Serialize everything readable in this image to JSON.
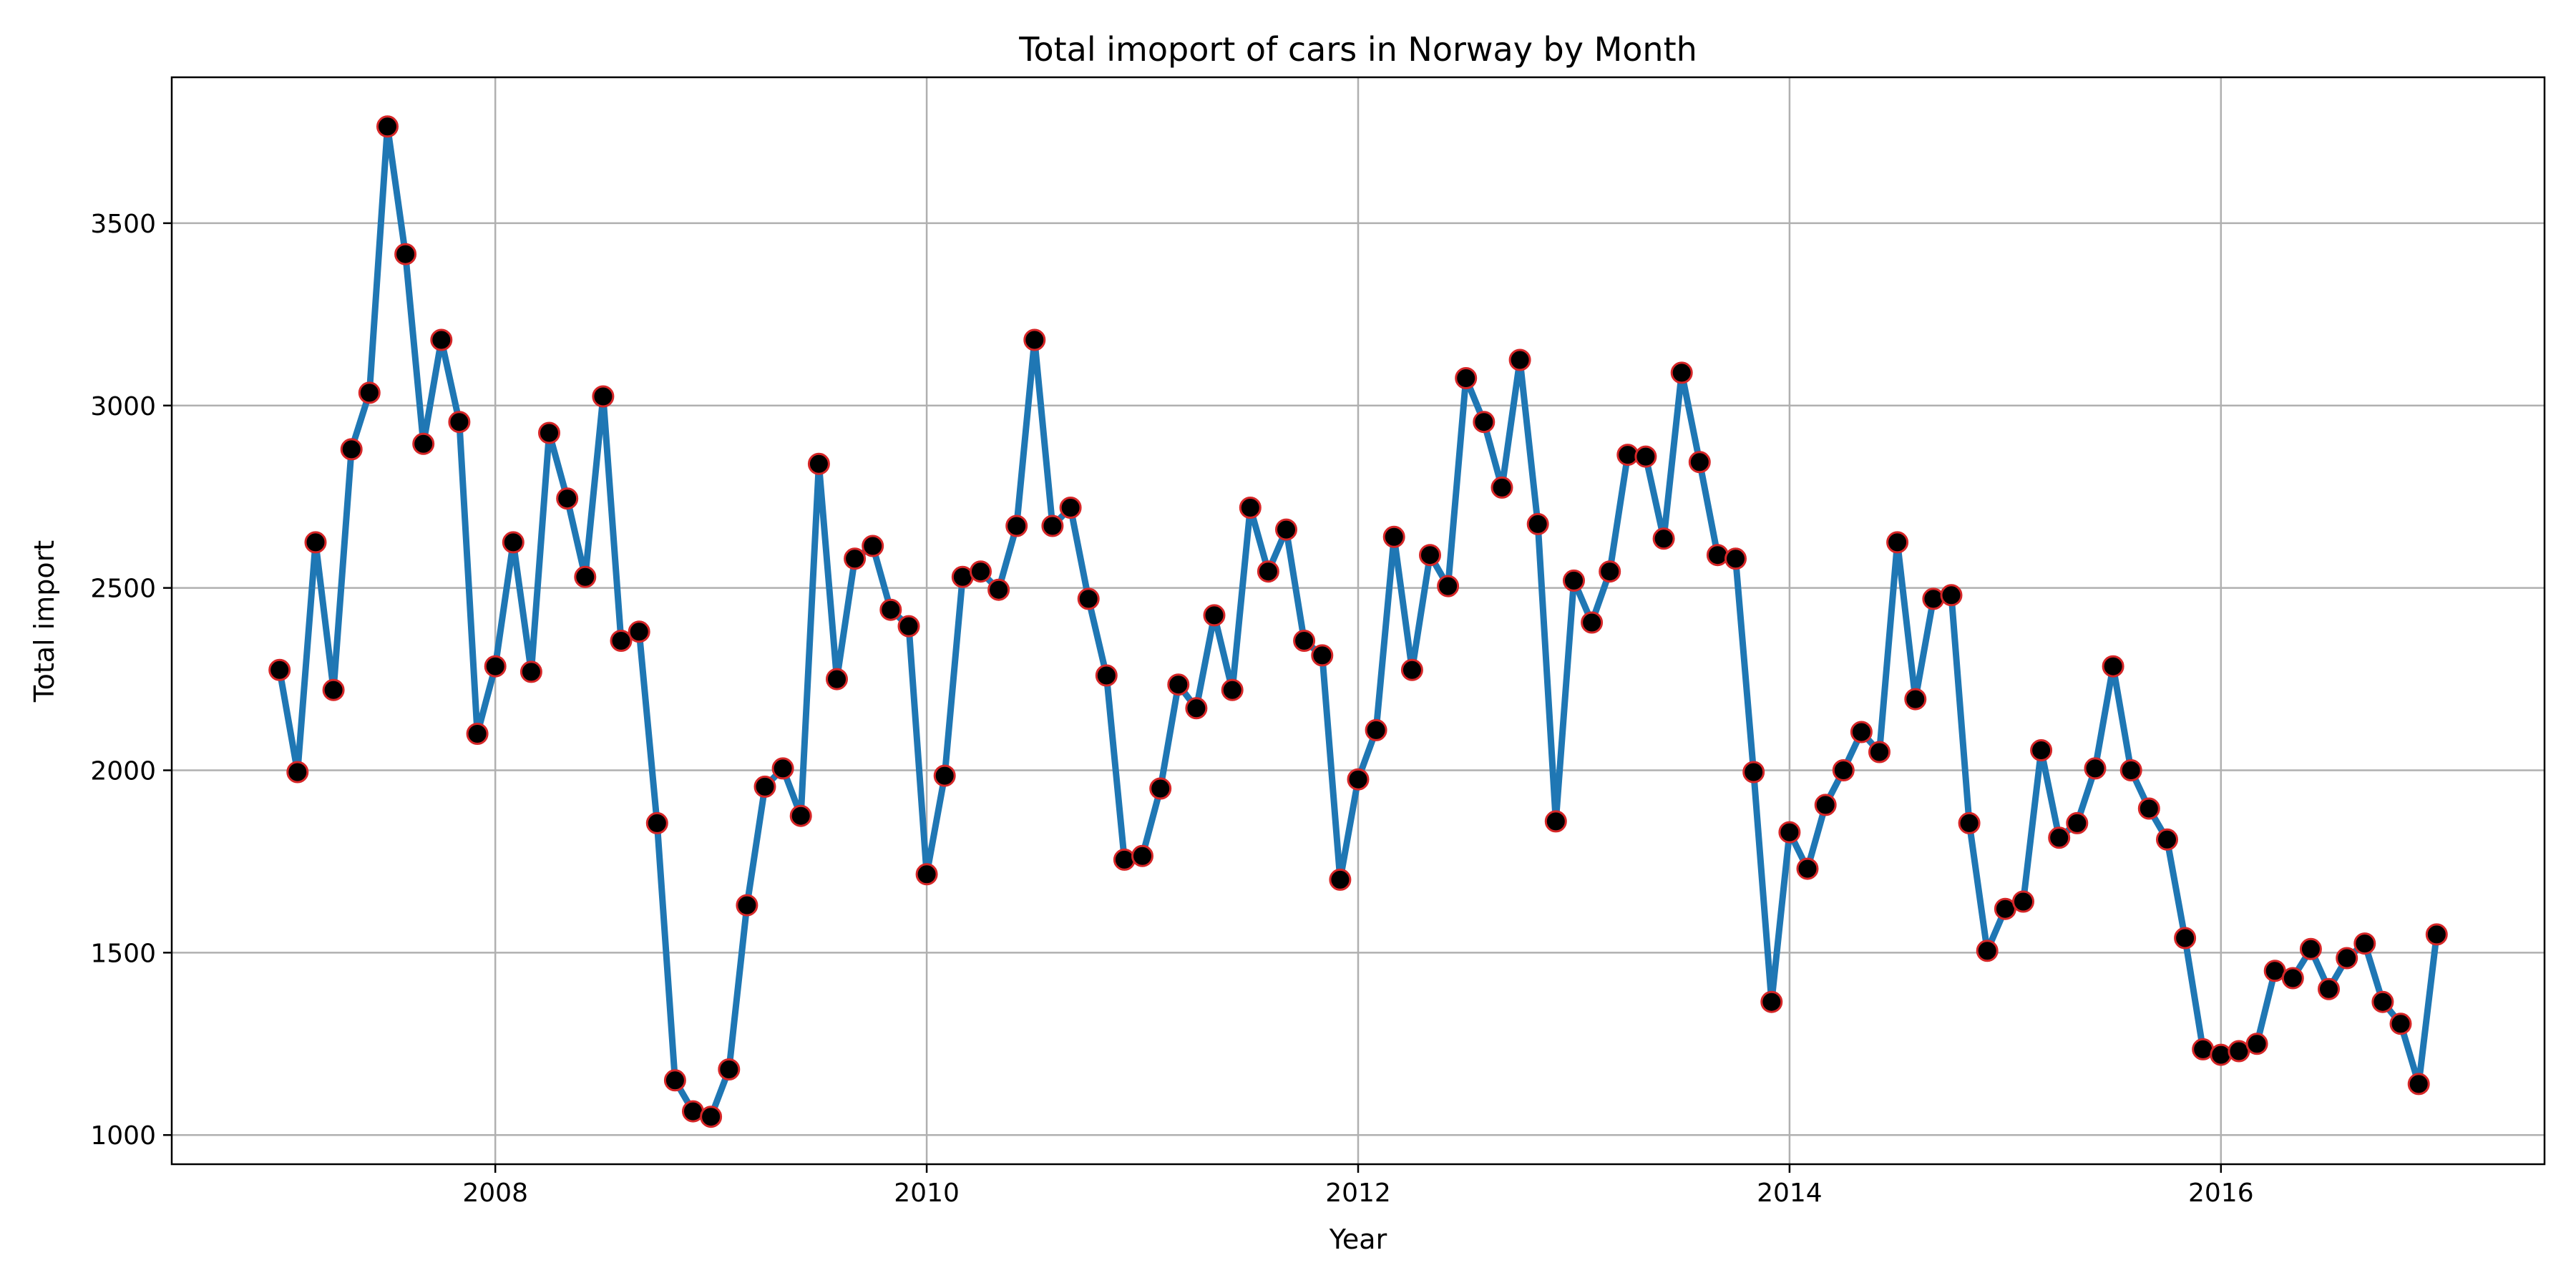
{
  "chart_data": {
    "type": "line",
    "title": "Total imoport of cars in Norway by Month",
    "xlabel": "Year",
    "ylabel": "Total import",
    "xlim": [
      2006.5,
      2017.5
    ],
    "ylim": [
      920,
      3900
    ],
    "x_ticks": [
      2008,
      2010,
      2012,
      2014,
      2016
    ],
    "y_ticks": [
      1000,
      1500,
      2000,
      2500,
      3000,
      3500
    ],
    "grid": true,
    "colors": {
      "line": "#1f77b4",
      "marker_face": "#000000",
      "marker_edge": "#d62728"
    },
    "x_start": "2007-01",
    "x_end": "2017-01",
    "series": [
      {
        "values": [
          2275,
          1995,
          2625,
          2220,
          2880,
          3035,
          3765,
          3415,
          2895,
          3180,
          2955,
          2100,
          2285,
          2625,
          2270,
          2925,
          2745,
          2530,
          3025,
          2355,
          2380,
          1855,
          1150,
          1065,
          1050,
          1180,
          1630,
          1955,
          2005,
          1875,
          2840,
          2250,
          2580,
          2615,
          2440,
          2395,
          1715,
          1985,
          2530,
          2545,
          2495,
          2670,
          3180,
          2670,
          2720,
          2470,
          2260,
          1755,
          1765,
          1950,
          2235,
          2170,
          2425,
          2220,
          2720,
          2545,
          2660,
          2355,
          2315,
          1700,
          1975,
          2110,
          2640,
          2275,
          2590,
          2505,
          3075,
          2955,
          2775,
          3125,
          2675,
          1860,
          2520,
          2405,
          2545,
          2865,
          2860,
          2635,
          3090,
          2845,
          2590,
          2580,
          1995,
          1365,
          1830,
          1730,
          1905,
          2000,
          2105,
          2050,
          2625,
          2195,
          2470,
          2480,
          1855,
          1505,
          1620,
          1640,
          2055,
          1815,
          1855,
          2005,
          2285,
          2000,
          1895,
          1810,
          1540,
          1235,
          1220,
          1230,
          1250,
          1450,
          1430,
          1510,
          1400,
          1485,
          1525,
          1365,
          1305,
          1140,
          1550
        ]
      }
    ]
  }
}
